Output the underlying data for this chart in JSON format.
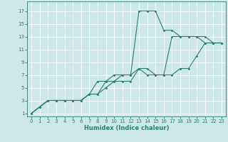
{
  "xlabel": "Humidex (Indice chaleur)",
  "bg_color": "#cce8e8",
  "grid_color": "#aacccc",
  "line_color": "#2d7d6e",
  "xlim": [
    -0.5,
    23.5
  ],
  "ylim": [
    0.5,
    18.5
  ],
  "xticks": [
    0,
    1,
    2,
    3,
    4,
    5,
    6,
    7,
    8,
    9,
    10,
    11,
    12,
    13,
    14,
    15,
    16,
    17,
    18,
    19,
    20,
    21,
    22,
    23
  ],
  "yticks": [
    1,
    3,
    5,
    7,
    9,
    11,
    13,
    15,
    17
  ],
  "series": [
    {
      "x": [
        0,
        1,
        2,
        3,
        4,
        5,
        6,
        7,
        8,
        9,
        10,
        11,
        12,
        13,
        14,
        15,
        16,
        17,
        18,
        19,
        20,
        21,
        22,
        23
      ],
      "y": [
        1,
        2,
        3,
        3,
        3,
        3,
        3,
        4,
        4,
        6,
        6,
        7,
        7,
        17,
        17,
        17,
        14,
        14,
        13,
        13,
        13,
        12,
        12,
        12
      ]
    },
    {
      "x": [
        0,
        1,
        2,
        3,
        4,
        5,
        6,
        7,
        8,
        9,
        10,
        11,
        12,
        13,
        14,
        15,
        16,
        17,
        18,
        19,
        20,
        21,
        22,
        23
      ],
      "y": [
        1,
        2,
        3,
        3,
        3,
        3,
        3,
        4,
        6,
        6,
        7,
        7,
        7,
        8,
        7,
        7,
        7,
        7,
        8,
        8,
        10,
        12,
        12,
        12
      ]
    },
    {
      "x": [
        0,
        1,
        2,
        3,
        4,
        5,
        6,
        7,
        8,
        9,
        10,
        11,
        12,
        13,
        14,
        15,
        16,
        17,
        18,
        19,
        20,
        21,
        22,
        23
      ],
      "y": [
        1,
        2,
        3,
        3,
        3,
        3,
        3,
        4,
        4,
        5,
        6,
        6,
        6,
        8,
        8,
        7,
        7,
        13,
        13,
        13,
        13,
        13,
        12,
        12
      ]
    }
  ],
  "marker_size": 1.8,
  "line_width": 0.8
}
